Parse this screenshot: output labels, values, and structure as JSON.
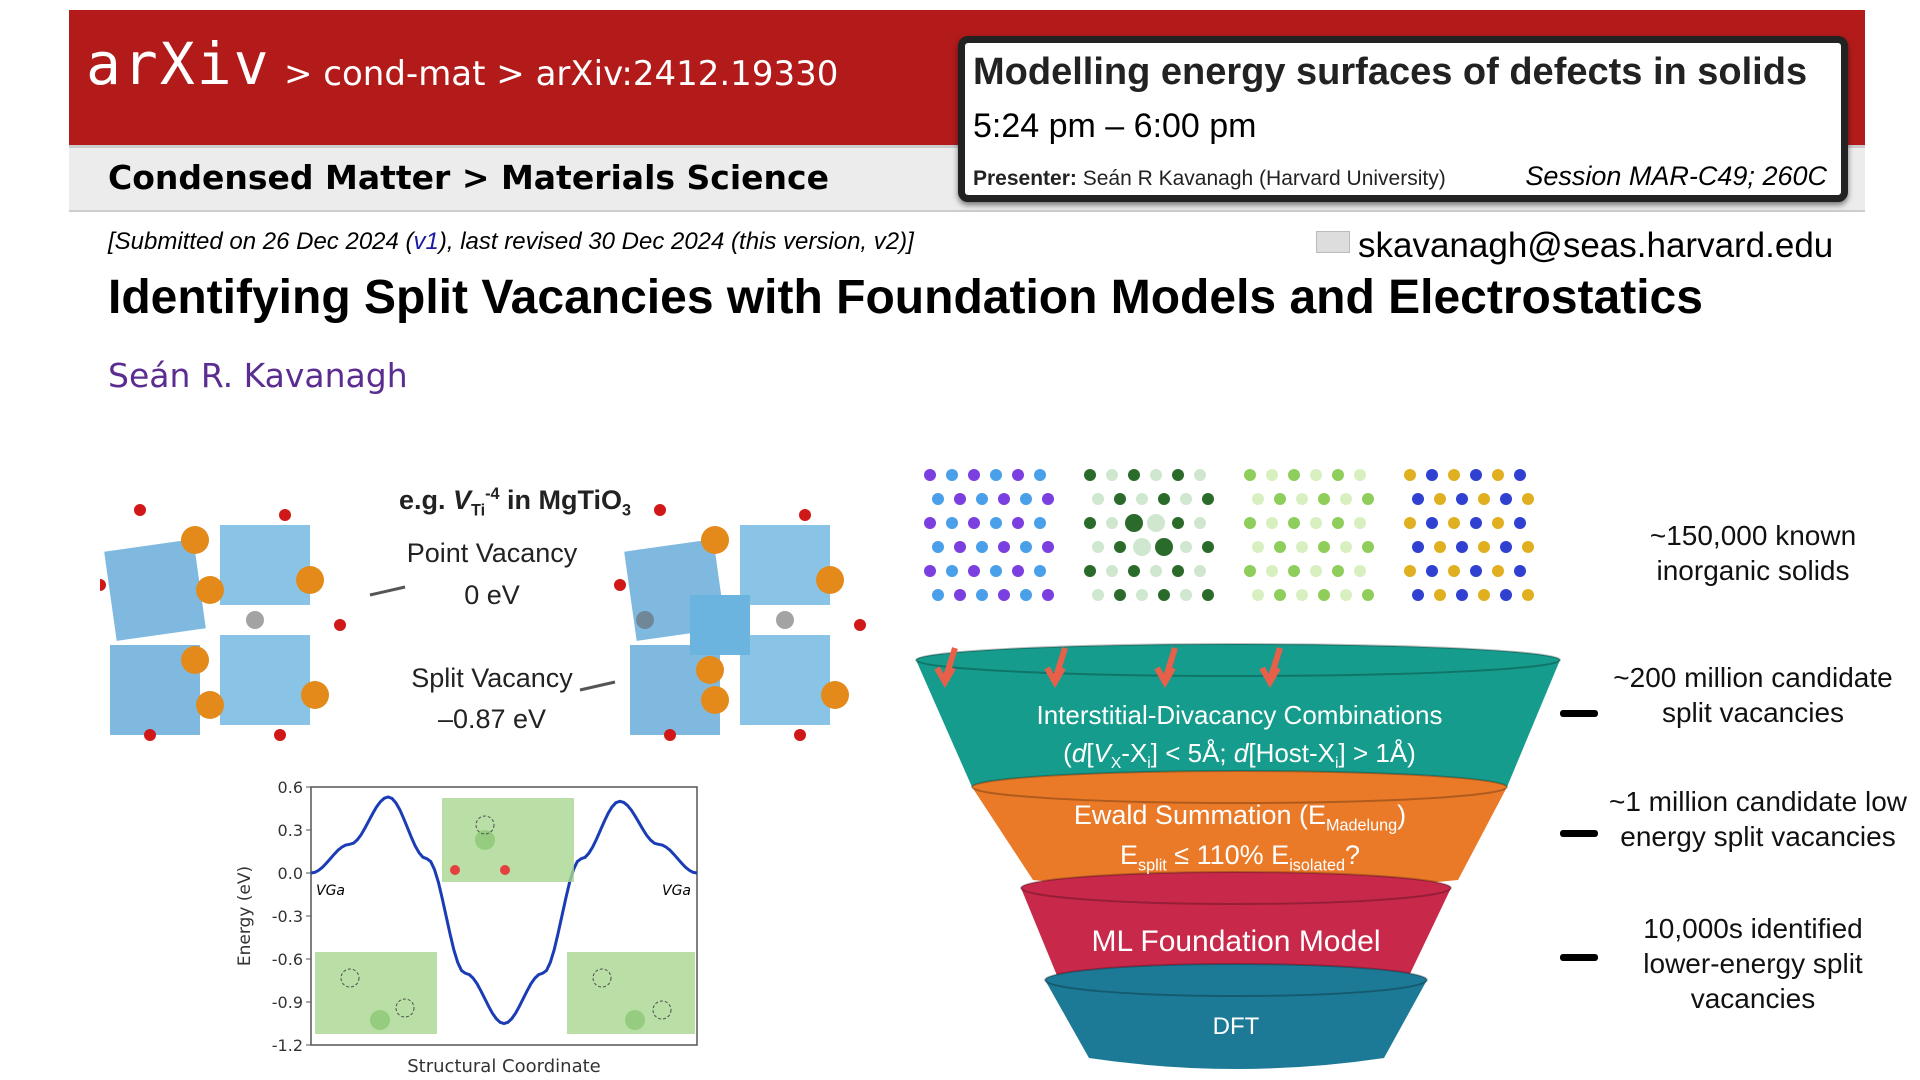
{
  "header": {
    "logo": "arXiv",
    "breadcrumb": "> cond-mat > arXiv:2412.19330",
    "category": "Condensed Matter > Materials Science"
  },
  "talk": {
    "title": "Modelling energy surfaces of defects in solids",
    "time": "5:24 pm – 6:00 pm",
    "presenter_label": "Presenter:",
    "presenter": "Seán R Kavanagh (Harvard University)",
    "session": "Session MAR-C49; 260C"
  },
  "paper": {
    "submitted_pre": "[Submitted on 26 Dec 2024 (",
    "v1": "v1",
    "submitted_post": "), last revised 30 Dec 2024 (this version, v2)]",
    "email": "skavanagh@seas.harvard.edu",
    "title": "Identifying Split Vacancies with Foundation Models and Electrostatics",
    "author": "Seán R. Kavanagh"
  },
  "figure": {
    "example_pre": "e.g. ",
    "example_v": "V",
    "example_sub": "Ti",
    "example_sup": "-4",
    "example_post": " in MgTiO",
    "example_post_sub": "3",
    "point_vacancy": "Point Vacancy",
    "point_energy": "0 eV",
    "split_vacancy": "Split Vacancy",
    "split_energy": "–0.87 eV",
    "funnel": {
      "layer1_line1": "Interstitial-Divacancy Combinations",
      "layer1_line2": "(d[VX-Xi] < 5Å; d[Host-Xi] > 1Å)",
      "layer2_line1": "Ewald Summation (E Madelung)",
      "layer2_line2": "E split ≤ 110% E isolated ?",
      "layer3": "ML Foundation Model",
      "layer4": "DFT"
    },
    "counts": [
      "~150,000 known inorganic solids",
      "~200 million candidate split vacancies",
      "~1 million candidate low energy split vacancies",
      "10,000s identified lower-energy split vacancies"
    ],
    "colors": {
      "teal": "#169c8c",
      "orange": "#ea7a28",
      "crimson": "#c8284a",
      "blue": "#1c7a96",
      "arrow": "#e8604a",
      "curve": "#1a3cb4"
    }
  },
  "chart_data": {
    "type": "line",
    "xlabel": "Structural Coordinate",
    "ylabel": "Energy (eV)",
    "ylim": [
      -1.2,
      0.6
    ],
    "yticks": [
      "0.6",
      "0.3",
      "0.0",
      "-0.3",
      "-0.6",
      "-0.9",
      "-1.2"
    ],
    "series": [
      {
        "x": [
          0,
          0.1,
          0.2,
          0.3,
          0.4,
          0.5,
          0.6,
          0.7,
          0.8,
          0.9,
          1.0
        ],
        "y": [
          0,
          0.2,
          0.53,
          0.1,
          -0.7,
          -1.05,
          -0.7,
          0.1,
          0.5,
          0.2,
          0
        ]
      }
    ],
    "annotations": [
      "VGa",
      "VGa"
    ]
  }
}
